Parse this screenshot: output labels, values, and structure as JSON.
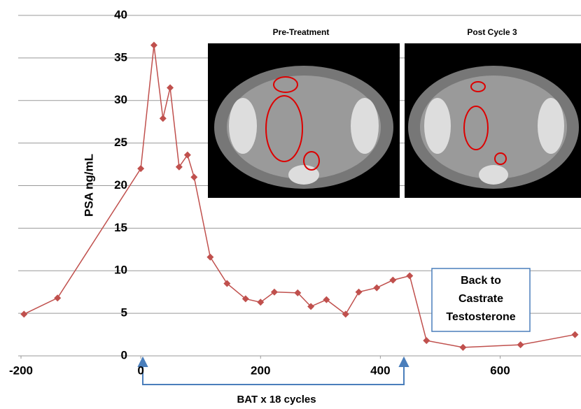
{
  "chart_data": {
    "type": "line",
    "y_axis_label": "PSA ng/mL",
    "x_axis_annotation": "BAT x 18 cycles",
    "annotation": {
      "lines": [
        "Back to",
        "Castrate",
        "Testosterone"
      ]
    },
    "image_titles": [
      "Pre-Treatment",
      "Post Cycle 3"
    ],
    "xlim": [
      -200,
      735
    ],
    "xticks": [
      -200,
      0,
      200,
      400,
      600
    ],
    "ylim": [
      0,
      40
    ],
    "yticks": [
      0,
      5,
      10,
      15,
      20,
      25,
      30,
      35,
      40
    ],
    "grid": true,
    "series": [
      {
        "color": "#c0504d",
        "x": [
          -195,
          -139,
          0,
          22,
          37,
          49,
          64,
          78,
          89,
          116,
          144,
          175,
          200,
          223,
          262,
          284,
          310,
          342,
          364,
          394,
          421,
          449,
          477,
          538,
          634,
          725
        ],
        "values": [
          4.9,
          6.8,
          22.0,
          36.5,
          27.9,
          31.5,
          22.2,
          23.6,
          21.0,
          11.6,
          8.5,
          6.7,
          6.3,
          7.5,
          7.4,
          5.8,
          6.6,
          4.9,
          7.5,
          8.0,
          8.9,
          9.4,
          1.8,
          1.0,
          1.3,
          2.5
        ]
      }
    ]
  }
}
